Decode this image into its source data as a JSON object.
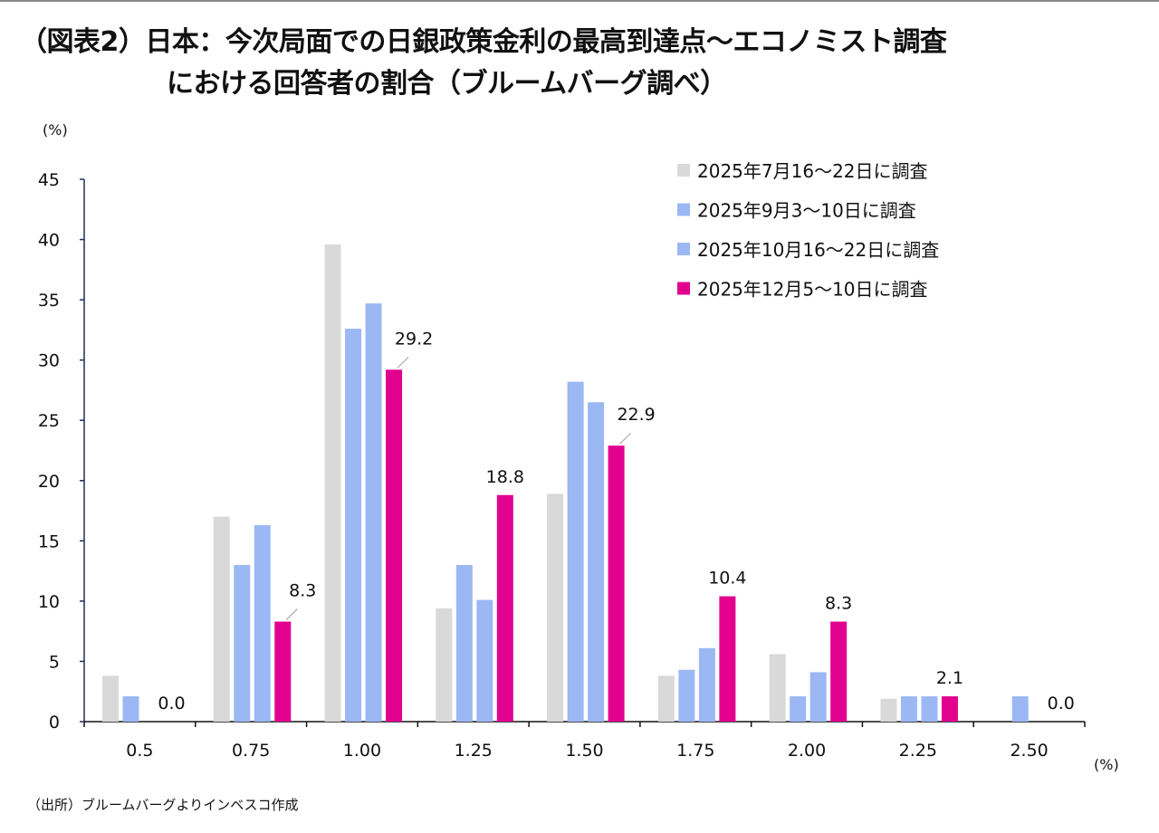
{
  "title": {
    "line1": "（図表2）日本：今次局面での日銀政策金利の最高到達点～エコノミスト調査",
    "line2": "における回答者の割合（ブルームバーグ調べ）"
  },
  "source": "（出所）ブルームバーグよりインベスコ作成",
  "chart_data": {
    "type": "bar",
    "title": "（図表2）日本：今次局面での日銀政策金利の最高到達点～エコノミスト調査における回答者の割合（ブルームバーグ調べ）",
    "ylabel": "(%)",
    "xlabel": "(%)",
    "ylim": [
      0,
      45
    ],
    "yticks": [
      0,
      5,
      10,
      15,
      20,
      25,
      30,
      35,
      40,
      45
    ],
    "categories": [
      "0.5",
      "0.75",
      "1.00",
      "1.25",
      "1.50",
      "1.75",
      "2.00",
      "2.25",
      "2.50"
    ],
    "legend_position": "top-right",
    "grid": false,
    "series": [
      {
        "name": "2025年7月16～22日に調査",
        "color": "#d9d9d9",
        "values": [
          3.8,
          17.0,
          39.6,
          9.4,
          18.9,
          3.8,
          5.6,
          1.9,
          0
        ]
      },
      {
        "name": "2025年9月3～10日に調査",
        "color": "#9bb8f4",
        "values": [
          2.1,
          13.0,
          32.6,
          13.0,
          28.2,
          4.3,
          2.1,
          2.1,
          2.1
        ]
      },
      {
        "name": "2025年10月16～22日に調査",
        "color": "#9bb8f4",
        "values": [
          0,
          16.3,
          34.7,
          10.1,
          26.5,
          6.1,
          4.1,
          2.1,
          0
        ]
      },
      {
        "name": "2025年12月5～10日に調査",
        "color": "#e2008f",
        "values": [
          0.0,
          8.3,
          29.2,
          18.8,
          22.9,
          10.4,
          8.3,
          2.1,
          0.0
        ]
      }
    ],
    "data_labels": {
      "series_index": 3,
      "labels": [
        "0.0",
        "8.3",
        "29.2",
        "18.8",
        "22.9",
        "10.4",
        "8.3",
        "2.1",
        "0.0"
      ]
    }
  }
}
